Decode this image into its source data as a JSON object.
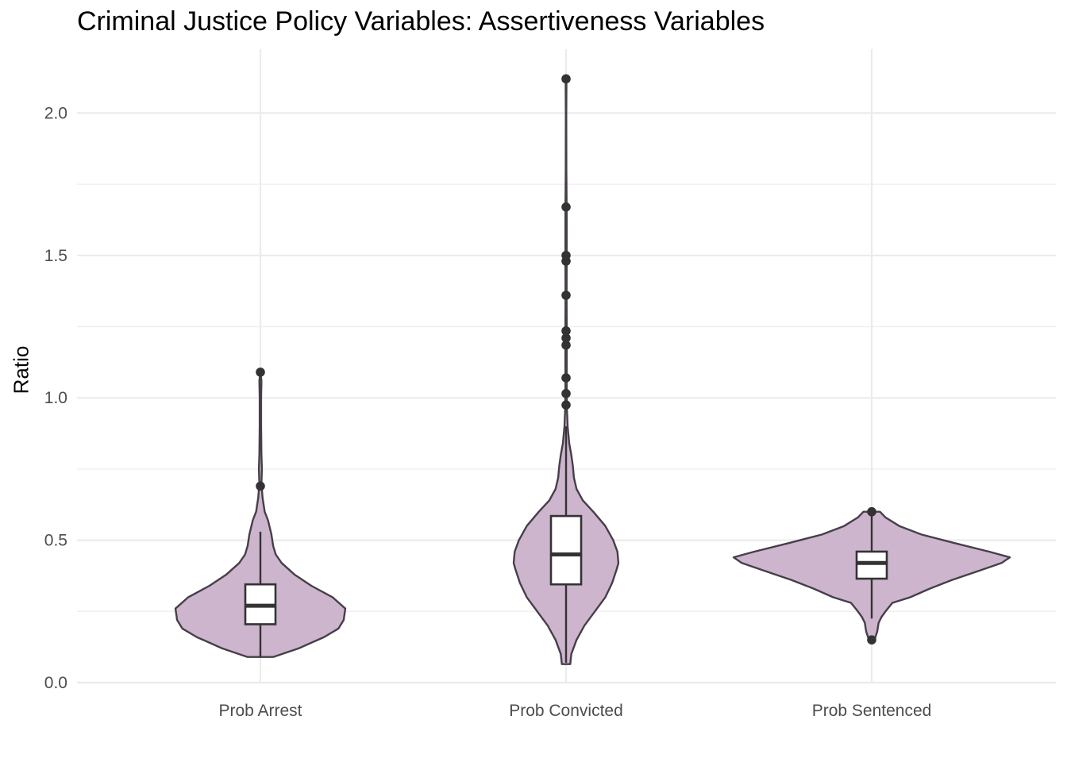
{
  "chart_data": {
    "type": "violin",
    "title": "Criminal Justice Policy Variables: Assertiveness Variables",
    "xlabel": "",
    "ylabel": "Ratio",
    "ylim": [
      0,
      2.2
    ],
    "yticks": [
      "0.0",
      "0.5",
      "1.0",
      "1.5",
      "2.0"
    ],
    "ytick_values": [
      0,
      0.5,
      1.0,
      1.5,
      2.0
    ],
    "categories": [
      "Prob Arrest",
      "Prob Convicted",
      "Prob Sentenced"
    ],
    "grid": true,
    "fill_color": "#cdb5cd",
    "outline_color": "#463f48",
    "box_color": "#333333",
    "groups": [
      {
        "name": "Prob Arrest",
        "min": 0.09,
        "q1": 0.205,
        "median": 0.27,
        "q3": 0.345,
        "whisker_low": 0.09,
        "whisker_high": 0.53,
        "outliers": [
          0.69,
          1.09
        ],
        "density": [
          [
            0.09,
            0.15
          ],
          [
            0.12,
            0.45
          ],
          [
            0.16,
            0.75
          ],
          [
            0.19,
            0.92
          ],
          [
            0.22,
            0.98
          ],
          [
            0.26,
            1.0
          ],
          [
            0.3,
            0.85
          ],
          [
            0.34,
            0.6
          ],
          [
            0.38,
            0.4
          ],
          [
            0.42,
            0.25
          ],
          [
            0.45,
            0.18
          ],
          [
            0.48,
            0.15
          ],
          [
            0.52,
            0.13
          ],
          [
            0.57,
            0.09
          ],
          [
            0.6,
            0.05
          ],
          [
            0.65,
            0.025
          ],
          [
            0.7,
            0.012
          ],
          [
            0.75,
            0.018
          ],
          [
            0.8,
            0.012
          ],
          [
            0.9,
            0.008
          ],
          [
            1.0,
            0.008
          ],
          [
            1.06,
            0.012
          ],
          [
            1.09,
            0.0
          ]
        ]
      },
      {
        "name": "Prob Convicted",
        "min": 0.07,
        "q1": 0.345,
        "median": 0.45,
        "q3": 0.585,
        "whisker_low": 0.07,
        "whisker_high": 0.9,
        "outliers": [
          0.975,
          1.015,
          1.07,
          1.185,
          1.21,
          1.235,
          1.36,
          1.48,
          1.5,
          1.67,
          2.12
        ],
        "density": [
          [
            0.065,
            0.08
          ],
          [
            0.1,
            0.1
          ],
          [
            0.15,
            0.2
          ],
          [
            0.2,
            0.35
          ],
          [
            0.25,
            0.55
          ],
          [
            0.3,
            0.75
          ],
          [
            0.35,
            0.88
          ],
          [
            0.4,
            0.97
          ],
          [
            0.42,
            1.0
          ],
          [
            0.46,
            0.98
          ],
          [
            0.5,
            0.9
          ],
          [
            0.55,
            0.75
          ],
          [
            0.6,
            0.52
          ],
          [
            0.64,
            0.32
          ],
          [
            0.68,
            0.2
          ],
          [
            0.72,
            0.15
          ],
          [
            0.76,
            0.13
          ],
          [
            0.8,
            0.1
          ],
          [
            0.84,
            0.06
          ],
          [
            0.9,
            0.03
          ],
          [
            0.96,
            0.016
          ],
          [
            1.05,
            0.012
          ],
          [
            1.2,
            0.014
          ],
          [
            1.35,
            0.01
          ],
          [
            1.5,
            0.012
          ],
          [
            1.65,
            0.012
          ],
          [
            1.8,
            0.006
          ],
          [
            2.0,
            0.004
          ],
          [
            2.1,
            0.008
          ],
          [
            2.12,
            0.0
          ]
        ]
      },
      {
        "name": "Prob Sentenced",
        "min": 0.15,
        "q1": 0.365,
        "median": 0.42,
        "q3": 0.46,
        "whisker_low": 0.225,
        "whisker_high": 0.6,
        "outliers": [
          0.15,
          0.6
        ],
        "density": [
          [
            0.15,
            0.02
          ],
          [
            0.18,
            0.04
          ],
          [
            0.21,
            0.05
          ],
          [
            0.23,
            0.07
          ],
          [
            0.25,
            0.1
          ],
          [
            0.28,
            0.15
          ],
          [
            0.3,
            0.28
          ],
          [
            0.33,
            0.42
          ],
          [
            0.36,
            0.58
          ],
          [
            0.39,
            0.76
          ],
          [
            0.42,
            0.94
          ],
          [
            0.44,
            1.0
          ],
          [
            0.46,
            0.85
          ],
          [
            0.49,
            0.6
          ],
          [
            0.52,
            0.36
          ],
          [
            0.55,
            0.2
          ],
          [
            0.58,
            0.1
          ],
          [
            0.6,
            0.06
          ]
        ]
      }
    ]
  }
}
